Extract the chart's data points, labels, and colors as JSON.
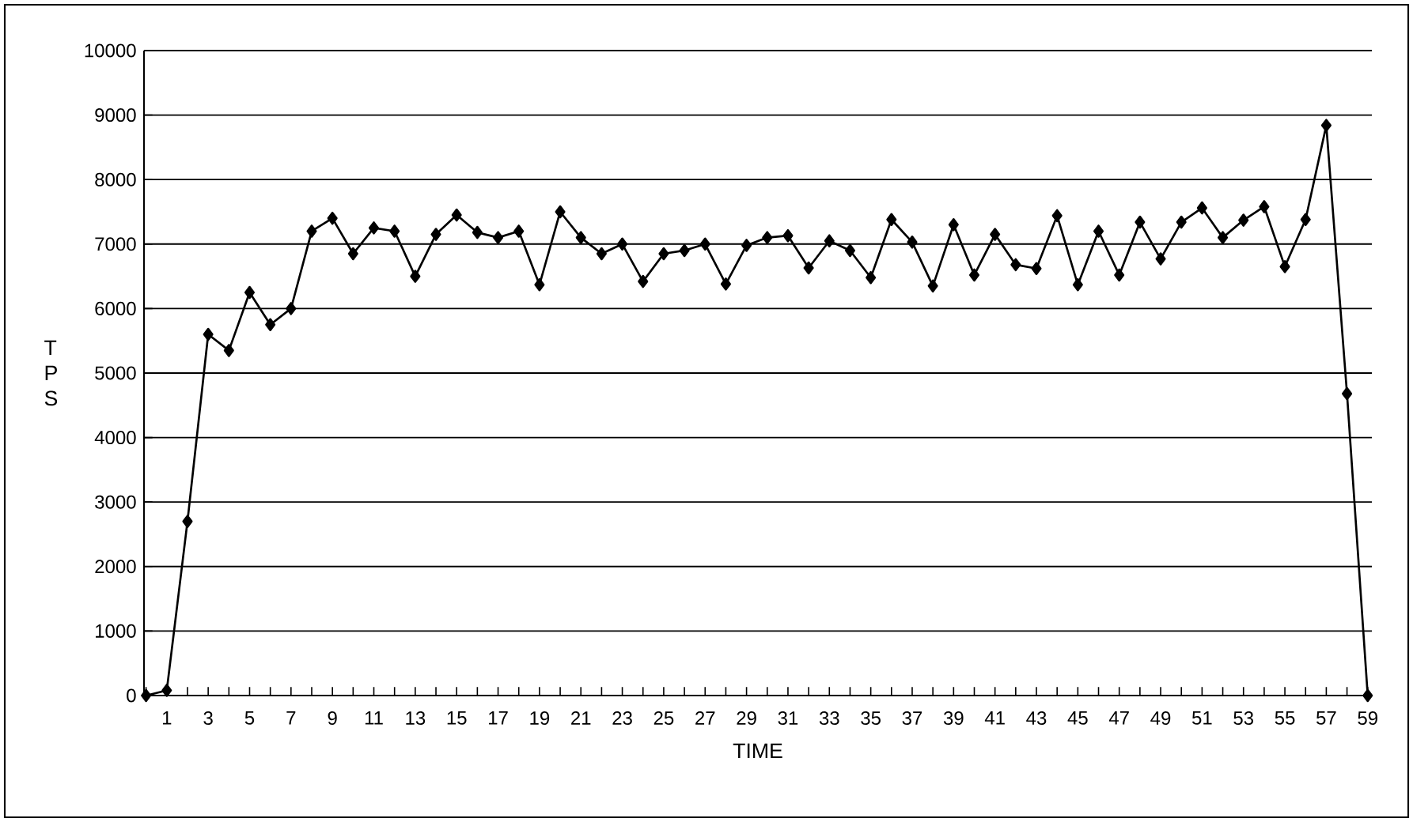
{
  "chart_data": {
    "type": "line",
    "xlabel": "TIME",
    "ylabel": "T P S",
    "categories": [
      null,
      "1",
      null,
      "3",
      null,
      "5",
      null,
      "7",
      null,
      "9",
      null,
      "11",
      null,
      "13",
      null,
      "15",
      null,
      "17",
      null,
      "19",
      null,
      "21",
      null,
      "23",
      null,
      "25",
      null,
      "27",
      null,
      "29",
      null,
      "31",
      null,
      "33",
      null,
      "35",
      null,
      "37",
      null,
      "39",
      null,
      "41",
      null,
      "43",
      null,
      "45",
      null,
      "47",
      null,
      "49",
      null,
      "51",
      null,
      "53",
      null,
      "55",
      null,
      "57",
      null,
      "59"
    ],
    "series": [
      {
        "color": "#000000",
        "values": [
          0,
          80,
          2700,
          5600,
          5350,
          6250,
          5750,
          6000,
          7200,
          7400,
          6850,
          7250,
          7200,
          6500,
          7150,
          7450,
          7180,
          7100,
          7200,
          6370,
          7500,
          7100,
          6850,
          7000,
          6420,
          6850,
          6900,
          7000,
          6380,
          6980,
          7100,
          7130,
          6630,
          7050,
          6900,
          6480,
          7380,
          7030,
          6350,
          7300,
          6520,
          7150,
          6680,
          6620,
          7440,
          6370,
          7200,
          6520,
          7340,
          6770,
          7340,
          7560,
          7100,
          7370,
          7580,
          6650,
          7380,
          8840,
          4680,
          0
        ]
      }
    ],
    "ylim": [
      0,
      10000
    ],
    "yticks": [
      0,
      1000,
      2000,
      3000,
      4000,
      5000,
      6000,
      7000,
      8000,
      9000,
      10000
    ],
    "grid": "y",
    "marker": "diamond",
    "line_style": "solid"
  }
}
